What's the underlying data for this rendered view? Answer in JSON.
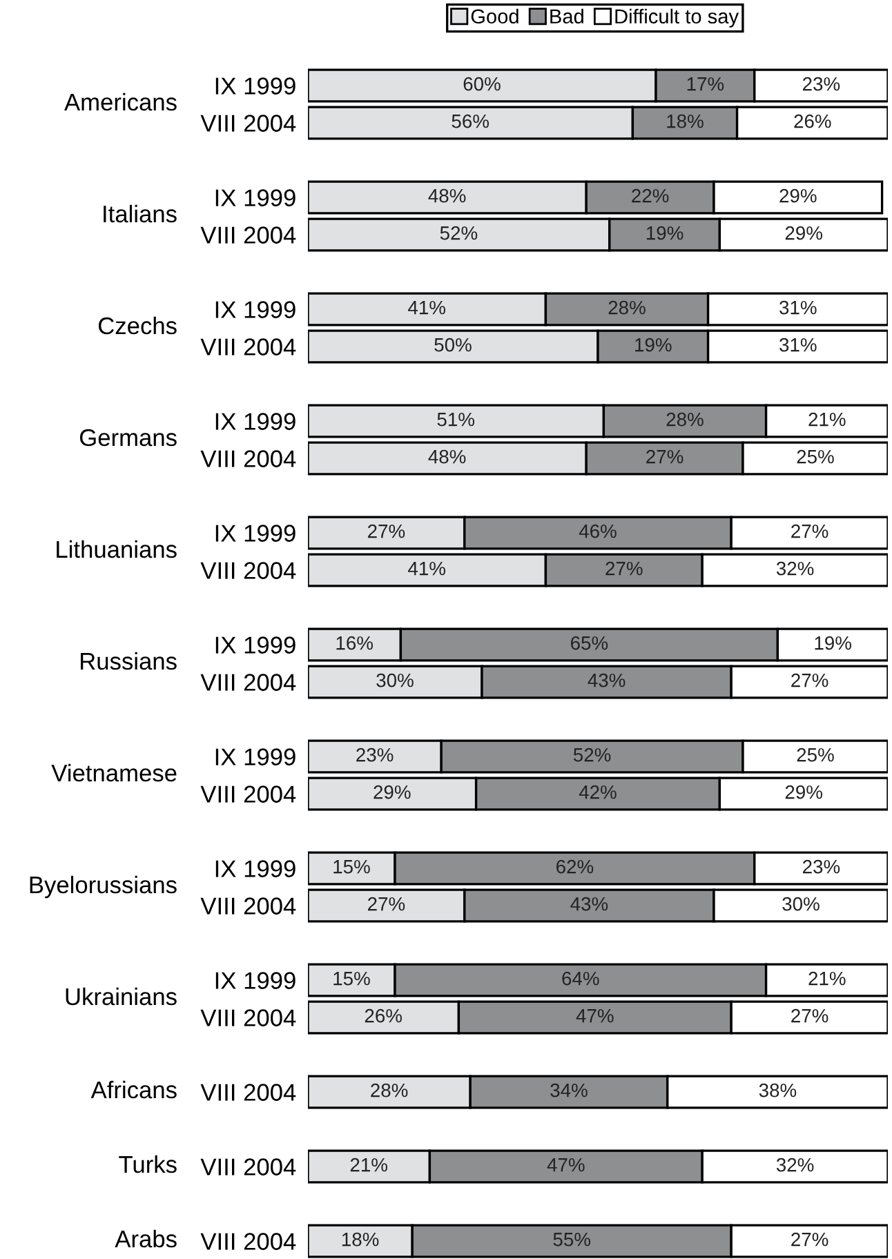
{
  "chart_data": [
    {
      "type": "bar",
      "orientation": "horizontal",
      "stacked": true,
      "title": "Americans",
      "categories": [
        "IX 1999",
        "VIII 2004"
      ],
      "tick_labels": "y",
      "legend": "top",
      "grid": false,
      "series": [
        {
          "name": "Good",
          "color": "#e0e1e2",
          "values": [
            60,
            56
          ],
          "value_labels": [
            "60%",
            "56%"
          ]
        },
        {
          "name": "Bad",
          "color": "#8e8f91",
          "values": [
            17,
            18
          ],
          "value_labels": [
            "17%",
            "18%"
          ]
        },
        {
          "name": "Difficult to say",
          "color": "#ffffff",
          "values": [
            23,
            26
          ],
          "value_labels": [
            "23%",
            "26%"
          ]
        }
      ]
    },
    {
      "type": "bar",
      "orientation": "horizontal",
      "stacked": true,
      "title": "Italians",
      "categories": [
        "IX 1999",
        "VIII 2004"
      ],
      "tick_labels": "y",
      "grid": false,
      "series": [
        {
          "color": "#e0e1e2",
          "values": [
            48,
            52
          ],
          "value_labels": [
            "48%",
            "52%"
          ]
        },
        {
          "color": "#8e8f91",
          "values": [
            22,
            19
          ],
          "value_labels": [
            "22%",
            "19%"
          ]
        },
        {
          "color": "#ffffff",
          "values": [
            29,
            29
          ],
          "value_labels": [
            "29%",
            "29%"
          ]
        }
      ]
    },
    {
      "type": "bar",
      "orientation": "horizontal",
      "stacked": true,
      "title": "Czechs",
      "categories": [
        "IX 1999",
        "VIII 2004"
      ],
      "tick_labels": "y",
      "grid": false,
      "series": [
        {
          "color": "#e0e1e2",
          "values": [
            41,
            50
          ],
          "value_labels": [
            "41%",
            "50%"
          ]
        },
        {
          "color": "#8e8f91",
          "values": [
            28,
            19
          ],
          "value_labels": [
            "28%",
            "19%"
          ]
        },
        {
          "color": "#ffffff",
          "values": [
            31,
            31
          ],
          "value_labels": [
            "31%",
            "31%"
          ]
        }
      ]
    },
    {
      "type": "bar",
      "orientation": "horizontal",
      "stacked": true,
      "title": "Germans",
      "categories": [
        "IX 1999",
        "VIII 2004"
      ],
      "tick_labels": "y",
      "grid": false,
      "series": [
        {
          "color": "#e0e1e2",
          "values": [
            51,
            48
          ],
          "value_labels": [
            "51%",
            "48%"
          ]
        },
        {
          "color": "#8e8f91",
          "values": [
            28,
            27
          ],
          "value_labels": [
            "28%",
            "27%"
          ]
        },
        {
          "color": "#ffffff",
          "values": [
            21,
            25
          ],
          "value_labels": [
            "21%",
            "25%"
          ]
        }
      ]
    },
    {
      "type": "bar",
      "orientation": "horizontal",
      "stacked": true,
      "title": "Lithuanians",
      "categories": [
        "IX 1999",
        "VIII 2004"
      ],
      "tick_labels": "y",
      "grid": false,
      "series": [
        {
          "color": "#e0e1e2",
          "values": [
            27,
            41
          ],
          "value_labels": [
            "27%",
            "41%"
          ]
        },
        {
          "color": "#8e8f91",
          "values": [
            46,
            27
          ],
          "value_labels": [
            "46%",
            "27%"
          ]
        },
        {
          "color": "#ffffff",
          "values": [
            27,
            32
          ],
          "value_labels": [
            "27%",
            "32%"
          ]
        }
      ]
    },
    {
      "type": "bar",
      "orientation": "horizontal",
      "stacked": true,
      "title": "Russians",
      "categories": [
        "IX 1999",
        "VIII 2004"
      ],
      "tick_labels": "y",
      "grid": false,
      "series": [
        {
          "color": "#e0e1e2",
          "values": [
            16,
            30
          ],
          "value_labels": [
            "16%",
            "30%"
          ]
        },
        {
          "color": "#8e8f91",
          "values": [
            65,
            43
          ],
          "value_labels": [
            "65%",
            "43%"
          ]
        },
        {
          "color": "#ffffff",
          "values": [
            19,
            27
          ],
          "value_labels": [
            "19%",
            "27%"
          ]
        }
      ]
    },
    {
      "type": "bar",
      "orientation": "horizontal",
      "stacked": true,
      "title": "Vietnamese",
      "categories": [
        "IX 1999",
        "VIII 2004"
      ],
      "tick_labels": "y",
      "grid": false,
      "series": [
        {
          "color": "#e0e1e2",
          "values": [
            23,
            29
          ],
          "value_labels": [
            "23%",
            "29%"
          ]
        },
        {
          "color": "#8e8f91",
          "values": [
            52,
            42
          ],
          "value_labels": [
            "52%",
            "42%"
          ]
        },
        {
          "color": "#ffffff",
          "values": [
            25,
            29
          ],
          "value_labels": [
            "25%",
            "29%"
          ]
        }
      ]
    },
    {
      "type": "bar",
      "orientation": "horizontal",
      "stacked": true,
      "title": "Byelorussians",
      "categories": [
        "IX 1999",
        "VIII 2004"
      ],
      "tick_labels": "y",
      "grid": false,
      "series": [
        {
          "color": "#e0e1e2",
          "values": [
            15,
            27
          ],
          "value_labels": [
            "15%",
            "27%"
          ]
        },
        {
          "color": "#8e8f91",
          "values": [
            62,
            43
          ],
          "value_labels": [
            "62%",
            "43%"
          ]
        },
        {
          "color": "#ffffff",
          "values": [
            23,
            30
          ],
          "value_labels": [
            "23%",
            "30%"
          ]
        }
      ]
    },
    {
      "type": "bar",
      "orientation": "horizontal",
      "stacked": true,
      "title": "Ukrainians",
      "categories": [
        "IX 1999",
        "VIII 2004"
      ],
      "tick_labels": "y",
      "grid": false,
      "series": [
        {
          "color": "#e0e1e2",
          "values": [
            15,
            26
          ],
          "value_labels": [
            "15%",
            "26%"
          ]
        },
        {
          "color": "#8e8f91",
          "values": [
            64,
            47
          ],
          "value_labels": [
            "64%",
            "47%"
          ]
        },
        {
          "color": "#ffffff",
          "values": [
            21,
            27
          ],
          "value_labels": [
            "21%",
            "27%"
          ]
        }
      ]
    },
    {
      "type": "bar",
      "orientation": "horizontal",
      "stacked": true,
      "title": "Africans",
      "categories": [
        "VIII 2004"
      ],
      "tick_labels": "y",
      "grid": false,
      "series": [
        {
          "color": "#e0e1e2",
          "values": [
            28
          ],
          "value_labels": [
            "28%"
          ]
        },
        {
          "color": "#8e8f91",
          "values": [
            34
          ],
          "value_labels": [
            "34%"
          ]
        },
        {
          "color": "#ffffff",
          "values": [
            38
          ],
          "value_labels": [
            "38%"
          ]
        }
      ]
    },
    {
      "type": "bar",
      "orientation": "horizontal",
      "stacked": true,
      "title": "Turks",
      "categories": [
        "VIII 2004"
      ],
      "tick_labels": "y",
      "grid": false,
      "series": [
        {
          "color": "#e0e1e2",
          "values": [
            21
          ],
          "value_labels": [
            "21%"
          ]
        },
        {
          "color": "#8e8f91",
          "values": [
            47
          ],
          "value_labels": [
            "47%"
          ]
        },
        {
          "color": "#ffffff",
          "values": [
            32
          ],
          "value_labels": [
            "32%"
          ]
        }
      ]
    },
    {
      "type": "bar",
      "orientation": "horizontal",
      "stacked": true,
      "title": "Arabs",
      "categories": [
        "VIII 2004"
      ],
      "tick_labels": "y",
      "grid": false,
      "series": [
        {
          "color": "#e0e1e2",
          "values": [
            18
          ],
          "value_labels": [
            "18%"
          ]
        },
        {
          "color": "#8e8f91",
          "values": [
            55
          ],
          "value_labels": [
            "55%"
          ]
        },
        {
          "color": "#ffffff",
          "values": [
            27
          ],
          "value_labels": [
            "27%"
          ]
        }
      ]
    }
  ]
}
